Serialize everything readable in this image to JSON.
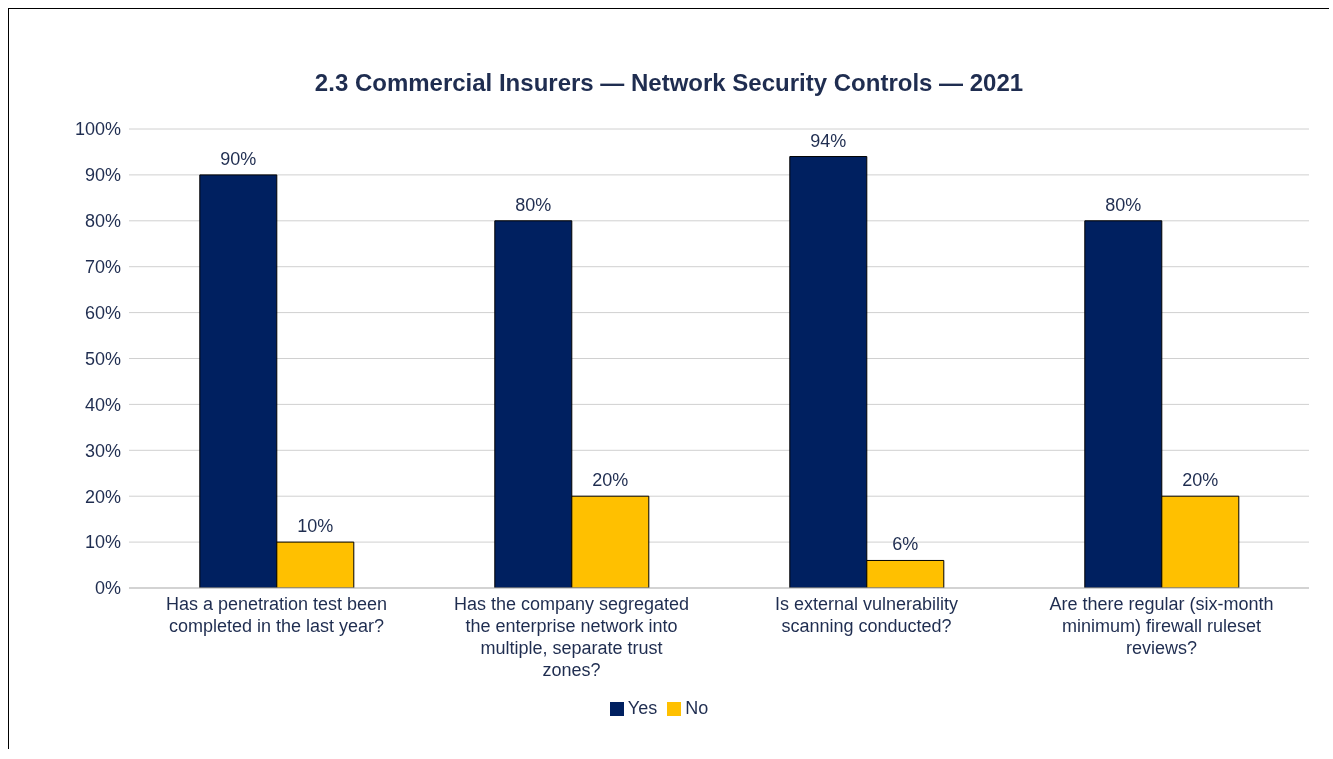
{
  "chart_data": {
    "type": "bar",
    "title": "2.3 Commercial Insurers —  Network Security Controls — 2021",
    "categories": [
      "Has a penetration test been completed in the last year?",
      "Has the company segregated the enterprise network into multiple, separate trust zones?",
      "Is external vulnerability scanning conducted?",
      "Are there regular (six-month minimum) firewall ruleset reviews?"
    ],
    "series": [
      {
        "name": "Yes",
        "color": "#002060",
        "values": [
          90,
          80,
          94,
          80
        ],
        "value_labels": [
          "90%",
          "80%",
          "94%",
          "80%"
        ]
      },
      {
        "name": "No",
        "color": "#ffc000",
        "values": [
          10,
          20,
          6,
          20
        ],
        "value_labels": [
          "10%",
          "20%",
          "6%",
          "20%"
        ]
      }
    ],
    "ylim": [
      0,
      100
    ],
    "yticks": [
      {
        "value": 0,
        "label": "0%"
      },
      {
        "value": 10,
        "label": "10%"
      },
      {
        "value": 20,
        "label": "20%"
      },
      {
        "value": 30,
        "label": "30%"
      },
      {
        "value": 40,
        "label": "40%"
      },
      {
        "value": 50,
        "label": "50%"
      },
      {
        "value": 60,
        "label": "60%"
      },
      {
        "value": 70,
        "label": "70%"
      },
      {
        "value": 80,
        "label": "80%"
      },
      {
        "value": 90,
        "label": "90%"
      },
      {
        "value": 100,
        "label": "100%"
      }
    ],
    "grid": "y",
    "legend": "bottom"
  }
}
